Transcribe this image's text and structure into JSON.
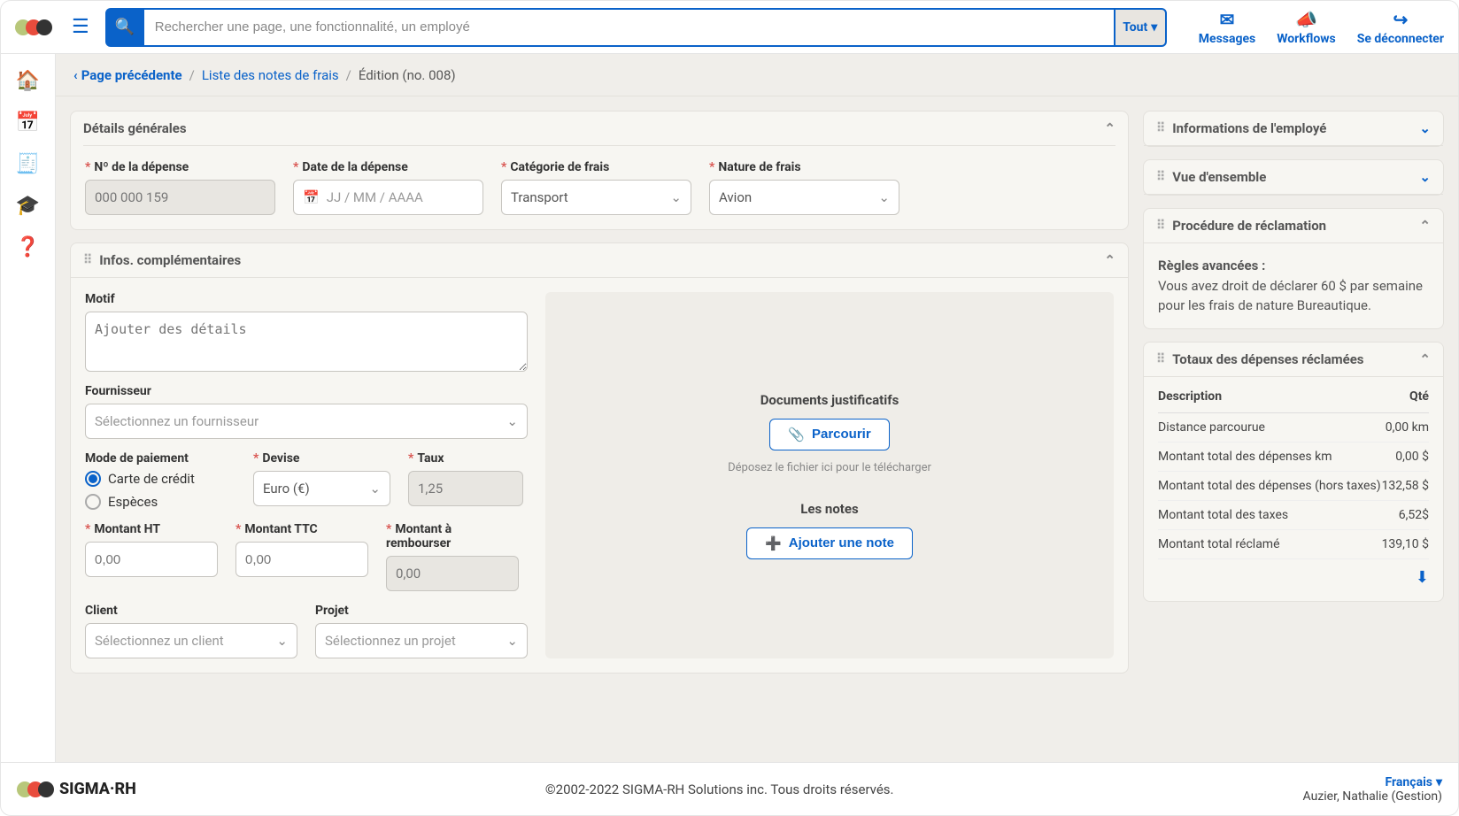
{
  "top": {
    "search_placeholder": "Rechercher une page, une fonctionnalité, un employé",
    "filter_label": "Tout",
    "actions": [
      {
        "label": "Messages"
      },
      {
        "label": "Workflows"
      },
      {
        "label": "Se déconnecter"
      }
    ]
  },
  "breadcrumb": {
    "back": "Page précédente",
    "list": "Liste des notes de frais",
    "current": "Édition (no. 008)"
  },
  "details": {
    "title": "Détails générales",
    "expense_no_label": "Nº de la dépense",
    "expense_no_value": "000 000 159",
    "date_label": "Date de la dépense",
    "date_placeholder": "JJ / MM / AAAA",
    "category_label": "Catégorie de frais",
    "category_value": "Transport",
    "nature_label": "Nature de frais",
    "nature_value": "Avion"
  },
  "infos": {
    "title": "Infos. complémentaires",
    "motif_label": "Motif",
    "motif_placeholder": "Ajouter des détails",
    "supplier_label": "Fournisseur",
    "supplier_placeholder": "Sélectionnez un fournisseur",
    "payment_label": "Mode de paiement",
    "payment_option_card": "Carte de crédit",
    "payment_option_cash": "Espèces",
    "currency_label": "Devise",
    "currency_value": "Euro (€)",
    "rate_label": "Taux",
    "rate_value": "1,25",
    "amount_ht_label": "Montant HT",
    "amount_ht_placeholder": "0,00",
    "amount_ttc_label": "Montant TTC",
    "amount_ttc_placeholder": "0,00",
    "refund_label": "Montant à rembourser",
    "refund_value": "0,00",
    "client_label": "Client",
    "client_placeholder": "Sélectionnez un client",
    "project_label": "Projet",
    "project_placeholder": "Sélectionnez un projet",
    "docs_title": "Documents justificatifs",
    "browse_label": "Parcourir",
    "drop_hint": "Déposez le fichier ici pour le télécharger",
    "notes_title": "Les notes",
    "add_note_label": "Ajouter une note"
  },
  "right": {
    "employee_info_title": "Informations de l'employé",
    "overview_title": "Vue d'ensemble",
    "procedure_title": "Procédure de réclamation",
    "rules_title": "Règles avancées :",
    "rules_text": "Vous avez droit de déclarer 60 $ par semaine pour les frais de nature Bureautique.",
    "totals_title": "Totaux des dépenses réclamées",
    "th_desc": "Description",
    "th_qty": "Qté",
    "rows": [
      {
        "desc": "Distance parcourue",
        "qty": "0,00 km"
      },
      {
        "desc": "Montant total des dépenses km",
        "qty": "0,00 $"
      },
      {
        "desc": "Montant total des dépenses (hors taxes)",
        "qty": "132,58 $"
      },
      {
        "desc": "Montant total des taxes",
        "qty": "6,52$"
      },
      {
        "desc": "Montant total réclamé",
        "qty": "139,10 $"
      }
    ]
  },
  "footer": {
    "brand": "SIGMA·RH",
    "copyright": "©2002-2022 SIGMA-RH Solutions inc. Tous droits réservés.",
    "language": "Français",
    "user": "Auzier, Nathalie (Gestion)"
  },
  "colors": {
    "primary": "#0a62c9",
    "bg": "#f0eeea",
    "panel": "#f7f6f2",
    "border": "#e3e1dc"
  }
}
